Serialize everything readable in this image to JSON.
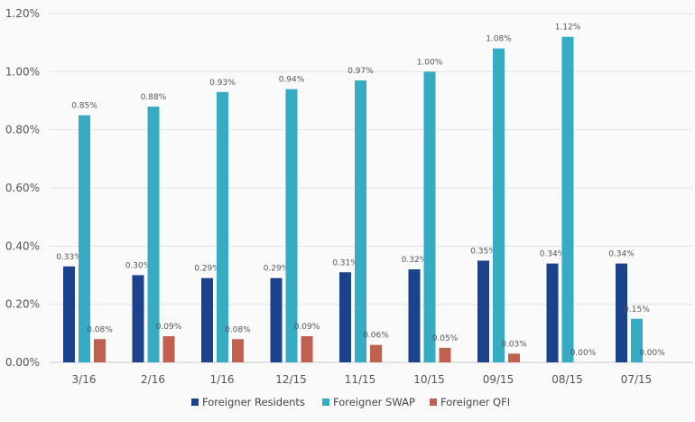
{
  "chart_data": {
    "type": "bar",
    "title": "",
    "xlabel": "",
    "ylabel": "",
    "ylim": [
      0,
      1.2
    ],
    "yticks": [
      "0.00%",
      "0.20%",
      "0.40%",
      "0.60%",
      "0.80%",
      "1.00%",
      "1.20%"
    ],
    "grid": true,
    "legend_position": "bottom",
    "categories": [
      "3/16",
      "2/16",
      "1/16",
      "12/15",
      "11/15",
      "10/15",
      "09/15",
      "08/15",
      "07/15"
    ],
    "series": [
      {
        "name": "Foreigner Residents",
        "color": "#1a438b",
        "values": [
          0.33,
          0.3,
          0.29,
          0.29,
          0.31,
          0.32,
          0.35,
          0.34,
          0.34
        ],
        "labels": [
          "0.33%",
          "0.30%",
          "0.29%",
          "0.29%",
          "0.31%",
          "0.32%",
          "0.35%",
          "0.34%",
          "0.34%"
        ]
      },
      {
        "name": "Foreigner SWAP",
        "color": "#36abc4",
        "values": [
          0.85,
          0.88,
          0.93,
          0.94,
          0.97,
          1.0,
          1.08,
          1.12,
          0.15
        ],
        "labels": [
          "0.85%",
          "0.88%",
          "0.93%",
          "0.94%",
          "0.97%",
          "1.00%",
          "1.08%",
          "1.12%",
          "0.15%"
        ]
      },
      {
        "name": "Foreigner QFI",
        "color": "#c0604f",
        "values": [
          0.08,
          0.09,
          0.08,
          0.09,
          0.06,
          0.05,
          0.03,
          0.0,
          0.0
        ],
        "labels": [
          "0.08%",
          "0.09%",
          "0.08%",
          "0.09%",
          "0.06%",
          "0.05%",
          "0.03%",
          "0.00%",
          "0.00%"
        ]
      }
    ]
  }
}
